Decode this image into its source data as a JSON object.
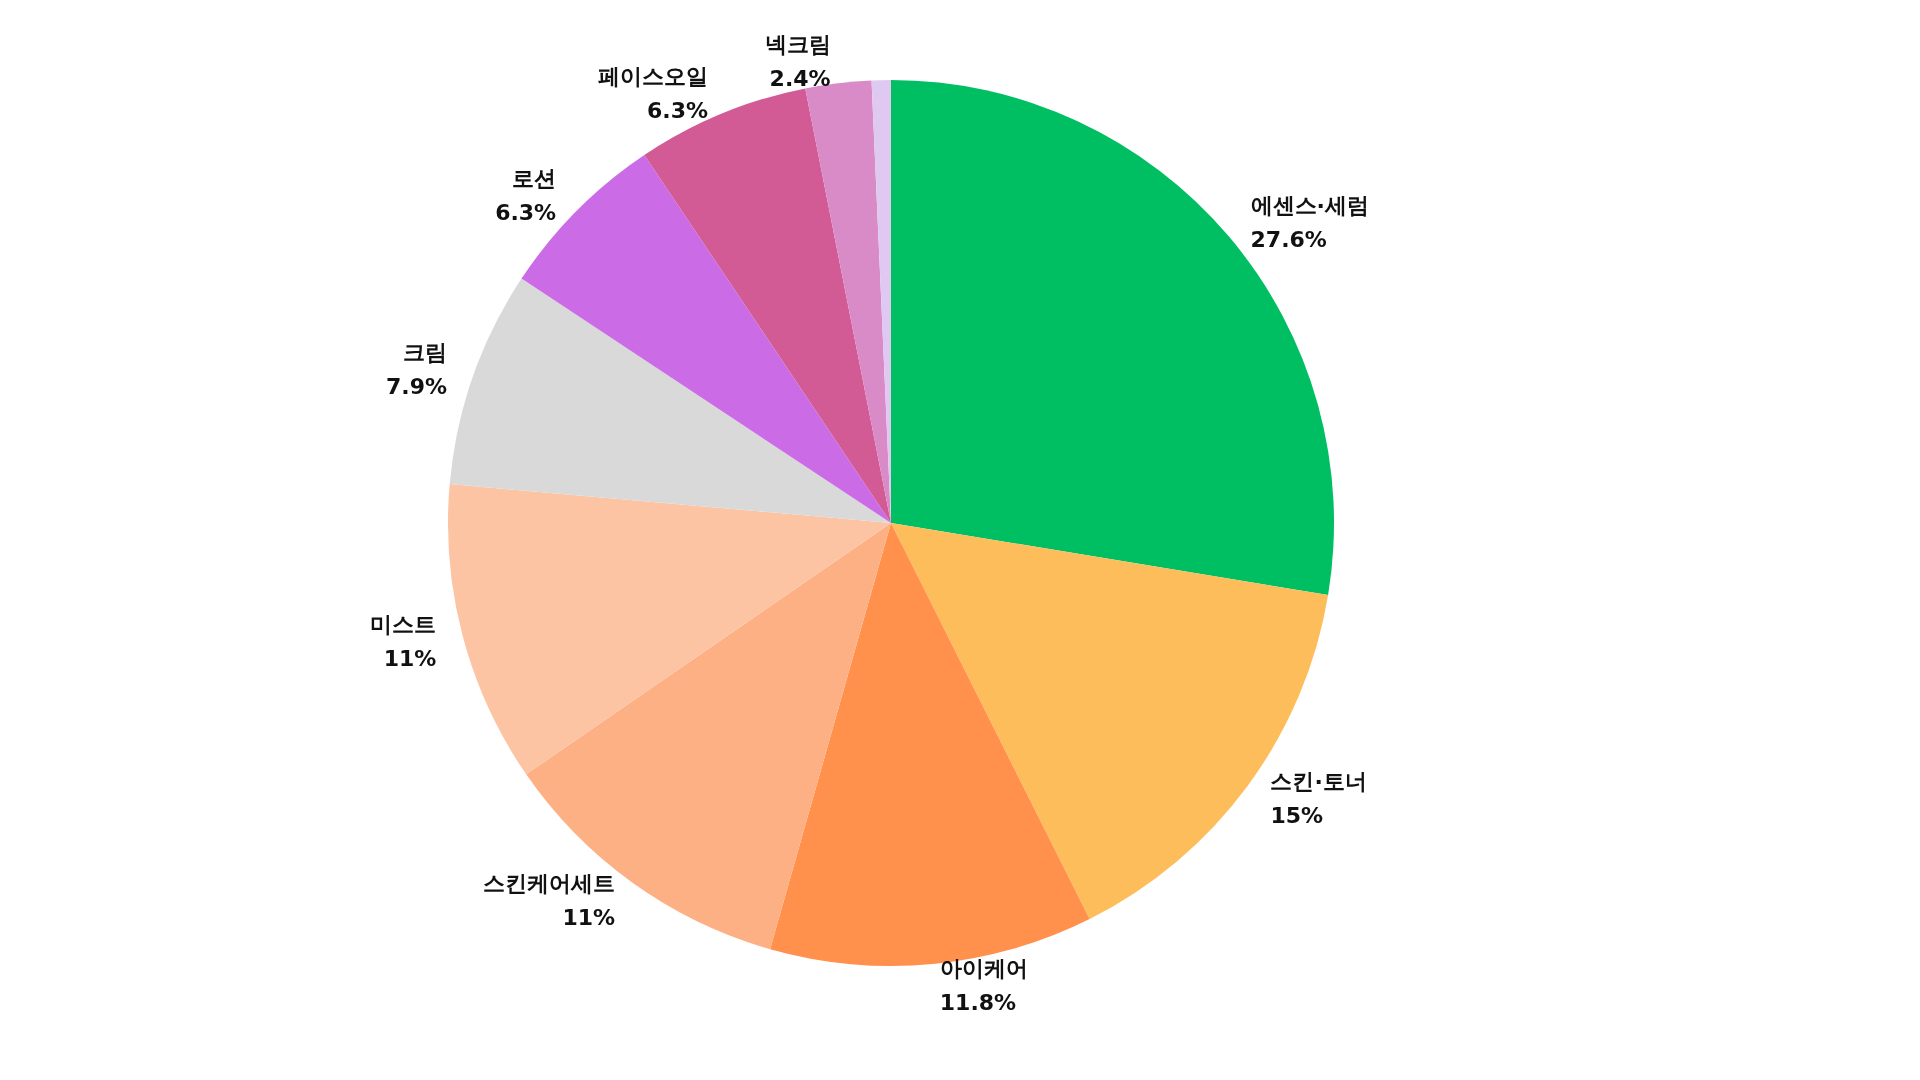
{
  "chart_data": {
    "type": "pie",
    "categories": [
      "에센스·세럼",
      "스킨·토너",
      "아이케어",
      "스킨케어세트",
      "미스트",
      "크림",
      "로션",
      "페이스오일",
      "넥크림",
      null
    ],
    "values": [
      27.6,
      15,
      11.8,
      11,
      11,
      7.9,
      6.3,
      6.3,
      2.4,
      0.7
    ],
    "value_labels": [
      "27.6%",
      "15%",
      "11.8%",
      "11%",
      "11%",
      "7.9%",
      "6.3%",
      "6.3%",
      "2.4%",
      null
    ],
    "colors": [
      "#00bf63",
      "#febd5b",
      "#ff914d",
      "#fcb084",
      "#fcc4a3",
      "#d9d9d9",
      "#cb6ce6",
      "#d25b96",
      "#d88bc6",
      "#e0c9f0"
    ]
  }
}
